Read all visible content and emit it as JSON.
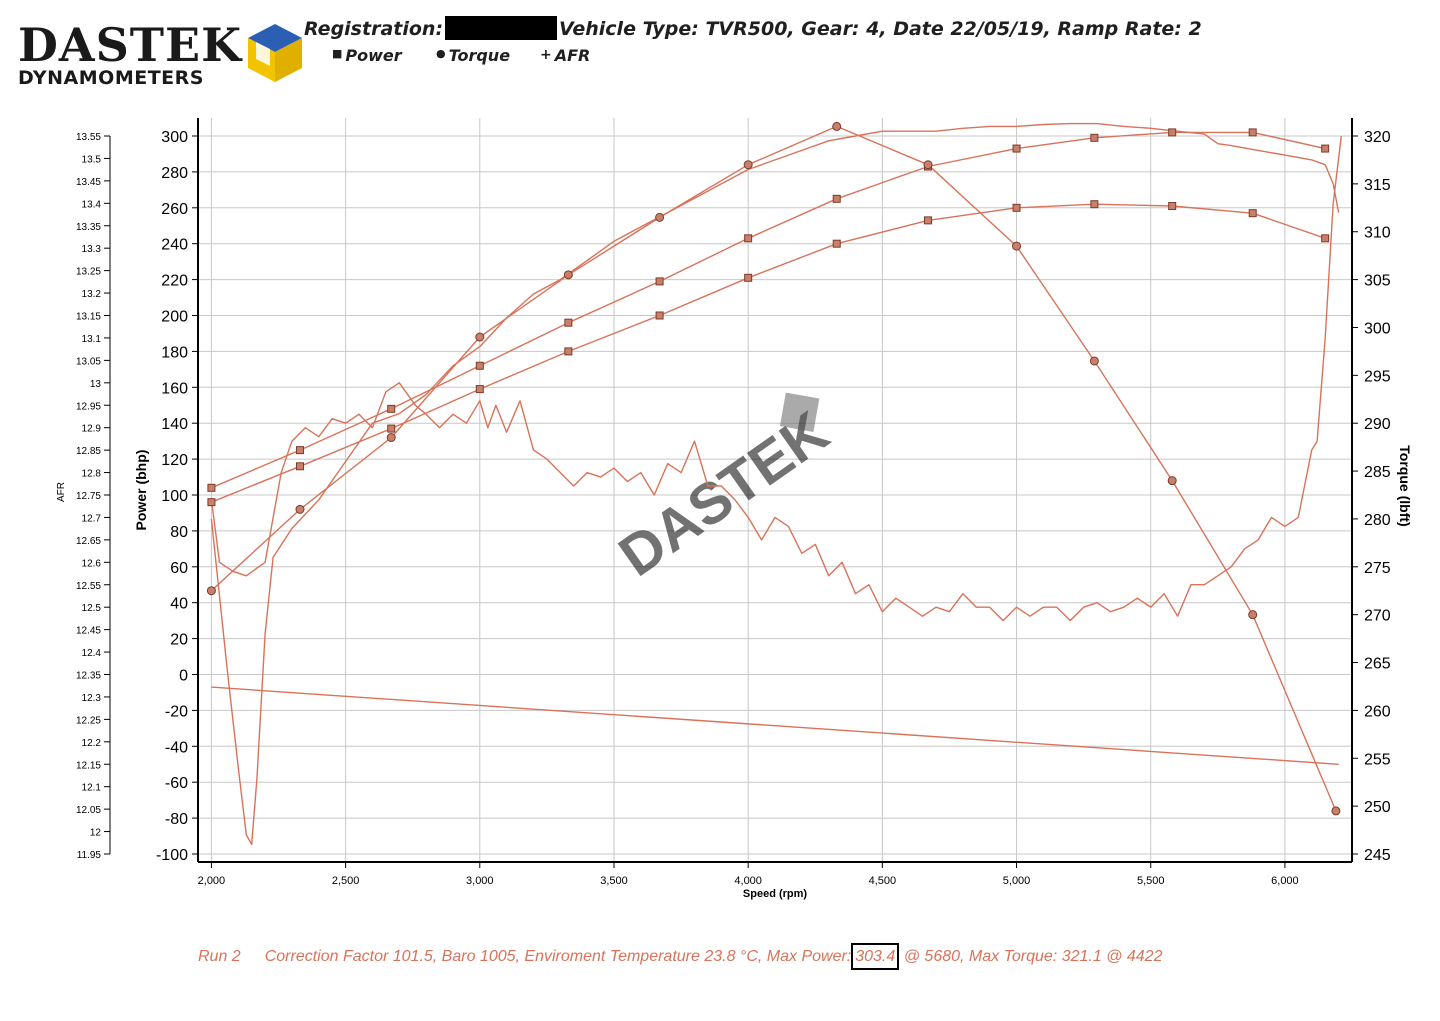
{
  "brand": {
    "name": "DASTEK",
    "sub": "DYNAMOMETERS",
    "watermark": "DASTEK"
  },
  "header": {
    "registration_label": "Registration:",
    "details": "Vehicle Type: TVR500, Gear: 4, Date 22/05/19, Ramp Rate: 2"
  },
  "legend": [
    {
      "marker": "■",
      "label": "Power"
    },
    {
      "marker": "●",
      "label": "Torque"
    },
    {
      "marker": "+",
      "label": "AFR"
    }
  ],
  "footer": {
    "run": "Run 2",
    "text_before": "Correction Factor 101.5, Baro 1005, Enviroment Temperature 23.8 °C, Max Power:",
    "max_power": "303.4",
    "text_after": "@ 5680, Max Torque: 321.1 @ 4422"
  },
  "colors": {
    "line": "#d8735a",
    "marker_fill": "#c9806a",
    "marker_stroke": "#7a3b2a",
    "grid": "#c8c8c8"
  },
  "chart_data": {
    "type": "line",
    "xlabel": "Speed (rpm)",
    "ylabel_left": "Power (bhp)",
    "ylabel_right": "Torque (lbft)",
    "ylabel_afr": "AFR",
    "xlim": [
      1950,
      6250
    ],
    "xticks": [
      2000,
      2500,
      3000,
      3500,
      4000,
      4500,
      5000,
      5500,
      6000
    ],
    "xtick_labels": [
      "2,000",
      "2,500",
      "3,000",
      "3,500",
      "4,000",
      "4,500",
      "5,000",
      "5,500",
      "6,000"
    ],
    "power_axis": {
      "ylim": [
        -100,
        300
      ],
      "ticks": [
        300,
        280,
        260,
        240,
        220,
        200,
        180,
        160,
        140,
        120,
        100,
        80,
        60,
        40,
        20,
        0,
        -20,
        -40,
        -60,
        -80,
        -100
      ]
    },
    "torque_axis": {
      "ylim": [
        245,
        320
      ],
      "ticks": [
        320,
        315,
        310,
        305,
        300,
        295,
        290,
        285,
        280,
        275,
        270,
        265,
        260,
        255,
        250,
        245
      ]
    },
    "afr_axis": {
      "ylim": [
        11.95,
        13.55
      ],
      "ticks": [
        "13.55",
        "13.5",
        "13.45",
        "13.4",
        "13.35",
        "13.3",
        "13.25",
        "13.2",
        "13.15",
        "13.1",
        "13.05",
        "13",
        "12.95",
        "12.9",
        "12.85",
        "12.8",
        "12.75",
        "12.7",
        "12.65",
        "12.6",
        "12.55",
        "12.5",
        "12.45",
        "12.4",
        "12.35",
        "12.3",
        "12.25",
        "12.2",
        "12.15",
        "12.1",
        "12.05",
        "12",
        "11.95"
      ]
    },
    "grid": true,
    "series": [
      {
        "name": "Power",
        "axis": "power",
        "marker": "square",
        "points": [
          [
            2000,
            96
          ],
          [
            2330,
            116
          ],
          [
            2670,
            137
          ],
          [
            3000,
            159
          ],
          [
            3330,
            180
          ],
          [
            3670,
            200
          ],
          [
            4000,
            221
          ],
          [
            4330,
            240
          ],
          [
            4670,
            253
          ],
          [
            5000,
            260
          ],
          [
            5290,
            262
          ],
          [
            5580,
            261
          ],
          [
            5880,
            257
          ],
          [
            6150,
            243
          ]
        ]
      },
      {
        "name": "Power",
        "axis": "power",
        "marker": "square",
        "points": [
          [
            2000,
            104
          ],
          [
            2330,
            125
          ],
          [
            2670,
            148
          ],
          [
            3000,
            172
          ],
          [
            3330,
            196
          ],
          [
            3670,
            219
          ],
          [
            4000,
            243
          ],
          [
            4330,
            265
          ],
          [
            4670,
            283
          ],
          [
            5000,
            293
          ],
          [
            5290,
            299
          ],
          [
            5580,
            302
          ],
          [
            5880,
            302
          ],
          [
            6150,
            293
          ]
        ]
      },
      {
        "name": "Torque",
        "axis": "torque",
        "marker": "circle",
        "points": [
          [
            2000,
            272.5
          ],
          [
            2330,
            281
          ],
          [
            2670,
            288.5
          ],
          [
            3000,
            299
          ],
          [
            3330,
            305.5
          ],
          [
            3670,
            311.5
          ],
          [
            4000,
            317
          ],
          [
            4330,
            321
          ],
          [
            4670,
            317
          ],
          [
            5000,
            308.5
          ],
          [
            5290,
            296.5
          ],
          [
            5580,
            284
          ],
          [
            5880,
            270
          ],
          [
            6190,
            249.5
          ]
        ]
      },
      {
        "name": "AFR",
        "axis": "afr",
        "marker": "none",
        "points": [
          [
            2000,
            12.74
          ],
          [
            2030,
            12.6
          ],
          [
            2080,
            12.58
          ],
          [
            2130,
            12.57
          ],
          [
            2200,
            12.6
          ],
          [
            2260,
            12.8
          ],
          [
            2300,
            12.87
          ],
          [
            2350,
            12.9
          ],
          [
            2400,
            12.88
          ],
          [
            2450,
            12.92
          ],
          [
            2500,
            12.91
          ],
          [
            2550,
            12.93
          ],
          [
            2600,
            12.9
          ],
          [
            2650,
            12.98
          ],
          [
            2700,
            13.0
          ],
          [
            2760,
            12.95
          ],
          [
            2800,
            12.93
          ],
          [
            2850,
            12.9
          ],
          [
            2900,
            12.93
          ],
          [
            2950,
            12.91
          ],
          [
            3000,
            12.96
          ],
          [
            3030,
            12.9
          ],
          [
            3060,
            12.95
          ],
          [
            3100,
            12.89
          ],
          [
            3150,
            12.96
          ],
          [
            3200,
            12.85
          ],
          [
            3250,
            12.83
          ],
          [
            3300,
            12.8
          ],
          [
            3350,
            12.77
          ],
          [
            3400,
            12.8
          ],
          [
            3450,
            12.79
          ],
          [
            3500,
            12.81
          ],
          [
            3550,
            12.78
          ],
          [
            3600,
            12.8
          ],
          [
            3650,
            12.75
          ],
          [
            3700,
            12.82
          ],
          [
            3750,
            12.8
          ],
          [
            3800,
            12.87
          ],
          [
            3850,
            12.77
          ],
          [
            3900,
            12.77
          ],
          [
            3950,
            12.74
          ],
          [
            4000,
            12.7
          ],
          [
            4050,
            12.65
          ],
          [
            4100,
            12.7
          ],
          [
            4150,
            12.68
          ],
          [
            4200,
            12.62
          ],
          [
            4250,
            12.64
          ],
          [
            4300,
            12.57
          ],
          [
            4350,
            12.6
          ],
          [
            4400,
            12.53
          ],
          [
            4450,
            12.55
          ],
          [
            4500,
            12.49
          ],
          [
            4550,
            12.52
          ],
          [
            4600,
            12.5
          ],
          [
            4650,
            12.48
          ],
          [
            4700,
            12.5
          ],
          [
            4750,
            12.49
          ],
          [
            4800,
            12.53
          ],
          [
            4850,
            12.5
          ],
          [
            4900,
            12.5
          ],
          [
            4950,
            12.47
          ],
          [
            5000,
            12.5
          ],
          [
            5050,
            12.48
          ],
          [
            5100,
            12.5
          ],
          [
            5150,
            12.5
          ],
          [
            5200,
            12.47
          ],
          [
            5250,
            12.5
          ],
          [
            5300,
            12.51
          ],
          [
            5350,
            12.49
          ],
          [
            5400,
            12.5
          ],
          [
            5450,
            12.52
          ],
          [
            5500,
            12.5
          ],
          [
            5550,
            12.53
          ],
          [
            5600,
            12.48
          ],
          [
            5650,
            12.55
          ],
          [
            5700,
            12.55
          ],
          [
            5750,
            12.57
          ],
          [
            5800,
            12.59
          ],
          [
            5850,
            12.63
          ],
          [
            5900,
            12.65
          ],
          [
            5950,
            12.7
          ],
          [
            6000,
            12.68
          ],
          [
            6050,
            12.7
          ],
          [
            6100,
            12.85
          ],
          [
            6120,
            12.87
          ],
          [
            6150,
            13.1
          ],
          [
            6180,
            13.4
          ],
          [
            6210,
            13.55
          ]
        ]
      },
      {
        "name": "Power",
        "axis": "power",
        "marker": "none",
        "points": [
          [
            2000,
            -7
          ],
          [
            6200,
            -50
          ]
        ]
      },
      {
        "name": "Torque",
        "axis": "torque",
        "marker": "none",
        "points": [
          [
            2000,
            280
          ],
          [
            2060,
            264
          ],
          [
            2100,
            254
          ],
          [
            2130,
            247
          ],
          [
            2150,
            246
          ],
          [
            2170,
            253
          ],
          [
            2200,
            268
          ],
          [
            2230,
            276
          ],
          [
            2300,
            279
          ],
          [
            2400,
            282
          ],
          [
            2500,
            286
          ],
          [
            2600,
            290
          ],
          [
            2700,
            291
          ],
          [
            2800,
            293
          ],
          [
            2900,
            296
          ],
          [
            3000,
            298
          ],
          [
            3100,
            301
          ],
          [
            3200,
            303.5
          ],
          [
            3300,
            305
          ],
          [
            3400,
            307
          ],
          [
            3500,
            309
          ],
          [
            3600,
            310.5
          ],
          [
            3700,
            312
          ],
          [
            3800,
            313.5
          ],
          [
            3900,
            315
          ],
          [
            4000,
            316.5
          ],
          [
            4100,
            317.5
          ],
          [
            4200,
            318.5
          ],
          [
            4300,
            319.5
          ],
          [
            4400,
            320
          ],
          [
            4500,
            320.5
          ],
          [
            4600,
            320.5
          ],
          [
            4700,
            320.5
          ],
          [
            4800,
            320.8
          ],
          [
            4900,
            321
          ],
          [
            5000,
            321
          ],
          [
            5100,
            321.2
          ],
          [
            5200,
            321.3
          ],
          [
            5300,
            321.3
          ],
          [
            5400,
            321
          ],
          [
            5500,
            320.8
          ],
          [
            5600,
            320.5
          ],
          [
            5700,
            320.2
          ],
          [
            5750,
            319.2
          ],
          [
            5800,
            319
          ],
          [
            5900,
            318.5
          ],
          [
            6000,
            318
          ],
          [
            6100,
            317.5
          ],
          [
            6150,
            317
          ],
          [
            6180,
            315
          ],
          [
            6200,
            312
          ]
        ]
      }
    ]
  }
}
